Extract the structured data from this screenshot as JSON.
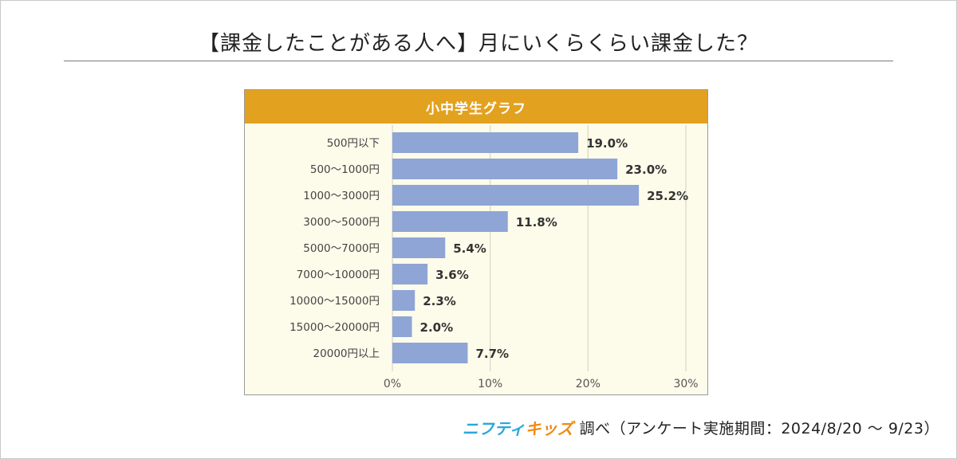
{
  "page": {
    "title": "【課金したことがある人へ】月にいくらくらい課金した？"
  },
  "chart_data": {
    "type": "bar",
    "orientation": "horizontal",
    "title": "小中学生グラフ",
    "categories": [
      "500円以下",
      "500〜1000円",
      "1000〜3000円",
      "3000〜5000円",
      "5000〜7000円",
      "7000〜10000円",
      "10000〜15000円",
      "15000〜20000円",
      "20000円以上"
    ],
    "values": [
      19.0,
      23.0,
      25.2,
      11.8,
      5.4,
      3.6,
      2.3,
      2.0,
      7.7
    ],
    "value_labels": [
      "19.0%",
      "23.0%",
      "25.2%",
      "11.8%",
      "5.4%",
      "3.6%",
      "2.3%",
      "2.0%",
      "7.7%"
    ],
    "xlim": [
      0,
      30
    ],
    "xticks": [
      0,
      10,
      20,
      30
    ],
    "xtick_labels": [
      "0%",
      "10%",
      "20%",
      "30%"
    ],
    "xlabel": "",
    "ylabel": "",
    "grid": true,
    "colors": {
      "bar": "#8ea5d6",
      "header": "#e2a11f",
      "background": "#fdfbea",
      "grid": "#d9d6c4"
    }
  },
  "footer": {
    "logo_part1": "ニフティ",
    "logo_part2": "キッズ",
    "text": "調べ（アンケート実施期間：2024/8/20 ～ 9/23）"
  }
}
